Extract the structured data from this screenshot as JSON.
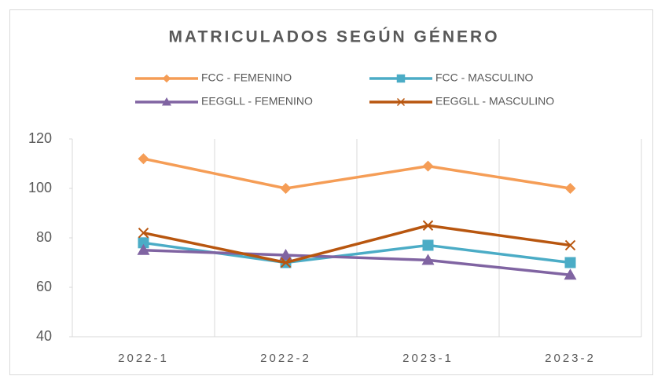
{
  "chart_data": {
    "type": "line",
    "title": "MATRICULADOS SEGÚN GÉNERO",
    "categories": [
      "2022-1",
      "2022-2",
      "2023-1",
      "2023-2"
    ],
    "series": [
      {
        "name": "FCC - FEMENINO",
        "color": "#f59d56",
        "marker": "diamond",
        "values": [
          112,
          100,
          109,
          100
        ]
      },
      {
        "name": "FCC - MASCULINO",
        "color": "#4bacc6",
        "marker": "square",
        "values": [
          78,
          70,
          77,
          70
        ]
      },
      {
        "name": "EEGGLL - FEMENINO",
        "color": "#8064a2",
        "marker": "triangle",
        "values": [
          75,
          73,
          71,
          65
        ]
      },
      {
        "name": "EEGGLL - MASCULINO",
        "color": "#b8560f",
        "marker": "x",
        "values": [
          82,
          70,
          85,
          77
        ]
      }
    ],
    "ylim": [
      40,
      120
    ],
    "yticks": [
      40,
      60,
      80,
      100,
      120
    ]
  }
}
